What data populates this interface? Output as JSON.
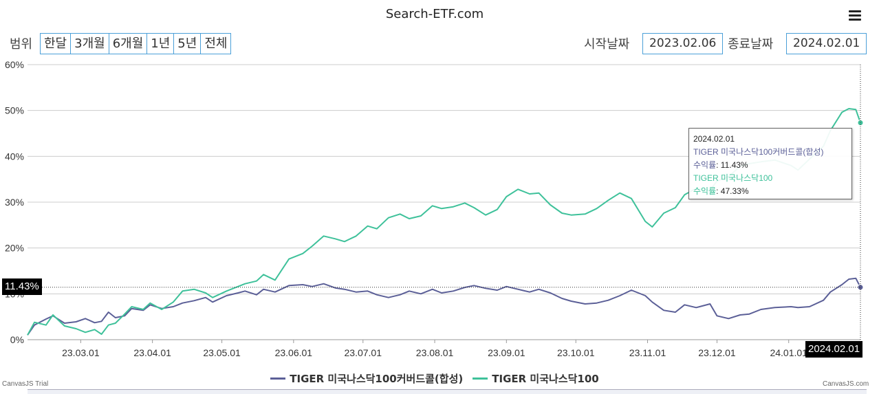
{
  "header": {
    "site_title": "Search-ETF.com",
    "menu_icon": "hamburger-menu-icon"
  },
  "controls": {
    "range_label": "범위",
    "ranges": [
      "한달",
      "3개월",
      "6개월",
      "1년",
      "5년",
      "전체"
    ],
    "start_label": "시작날짜",
    "start_value": "2023.02.06",
    "end_label": "종료날짜",
    "end_value": "2024.02.01"
  },
  "tooltip": {
    "date": "2024.02.01",
    "series1_name": "TIGER 미국나스닥100커버드콜(합성)",
    "series1_label": "수익률",
    "series1_value": ": 11.43%",
    "series2_name": "TIGER 미국나스닥100",
    "series2_label": "수익률",
    "series2_value": ": 47.33%"
  },
  "crosshair": {
    "y_label": "11.43%",
    "x_label": "2024.02.01"
  },
  "credits": {
    "left": "CanvasJS Trial",
    "right": "CanvasJS.com"
  },
  "colors": {
    "series1": "#5b5f97",
    "series2": "#3ec19a",
    "grid": "#cccccc",
    "accent": "#4a9fd8"
  },
  "chart_data": {
    "type": "line",
    "x_ticks": [
      "23.03.01",
      "23.04.01",
      "23.05.01",
      "23.06.01",
      "23.07.01",
      "23.08.01",
      "23.09.01",
      "23.10.01",
      "23.11.01",
      "23.12.01",
      "24.01.01"
    ],
    "y_ticks": [
      "0%",
      "10%",
      "20%",
      "30%",
      "40%",
      "50%",
      "60%"
    ],
    "ylim": [
      0,
      60
    ],
    "grid": true,
    "legend_position": "bottom",
    "series": [
      {
        "name": "TIGER 미국나스닥100커버드콜(합성)",
        "color": "#5b5f97",
        "points": [
          [
            "2023-02-06",
            1.0
          ],
          [
            "2023-02-09",
            3.2
          ],
          [
            "2023-02-14",
            4.5
          ],
          [
            "2023-02-17",
            5.2
          ],
          [
            "2023-02-22",
            3.6
          ],
          [
            "2023-02-27",
            3.9
          ],
          [
            "2023-03-03",
            4.6
          ],
          [
            "2023-03-07",
            3.7
          ],
          [
            "2023-03-10",
            4.0
          ],
          [
            "2023-03-13",
            6.0
          ],
          [
            "2023-03-16",
            4.8
          ],
          [
            "2023-03-20",
            5.2
          ],
          [
            "2023-03-23",
            6.8
          ],
          [
            "2023-03-28",
            6.4
          ],
          [
            "2023-03-31",
            7.6
          ],
          [
            "2023-04-05",
            6.8
          ],
          [
            "2023-04-10",
            7.2
          ],
          [
            "2023-04-14",
            8.0
          ],
          [
            "2023-04-19",
            8.5
          ],
          [
            "2023-04-24",
            9.2
          ],
          [
            "2023-04-27",
            8.2
          ],
          [
            "2023-05-03",
            9.6
          ],
          [
            "2023-05-08",
            10.2
          ],
          [
            "2023-05-11",
            10.6
          ],
          [
            "2023-05-16",
            9.8
          ],
          [
            "2023-05-19",
            11.0
          ],
          [
            "2023-05-24",
            10.4
          ],
          [
            "2023-05-30",
            11.8
          ],
          [
            "2023-06-05",
            12.0
          ],
          [
            "2023-06-09",
            11.6
          ],
          [
            "2023-06-14",
            12.2
          ],
          [
            "2023-06-19",
            11.3
          ],
          [
            "2023-06-23",
            11.0
          ],
          [
            "2023-06-28",
            10.4
          ],
          [
            "2023-07-03",
            10.6
          ],
          [
            "2023-07-07",
            9.8
          ],
          [
            "2023-07-12",
            9.2
          ],
          [
            "2023-07-17",
            9.8
          ],
          [
            "2023-07-21",
            10.6
          ],
          [
            "2023-07-26",
            10.0
          ],
          [
            "2023-07-31",
            11.0
          ],
          [
            "2023-08-04",
            10.2
          ],
          [
            "2023-08-09",
            10.6
          ],
          [
            "2023-08-14",
            11.4
          ],
          [
            "2023-08-18",
            11.8
          ],
          [
            "2023-08-23",
            11.2
          ],
          [
            "2023-08-28",
            10.8
          ],
          [
            "2023-09-01",
            11.6
          ],
          [
            "2023-09-06",
            11.0
          ],
          [
            "2023-09-11",
            10.4
          ],
          [
            "2023-09-15",
            11.0
          ],
          [
            "2023-09-20",
            10.2
          ],
          [
            "2023-09-25",
            9.0
          ],
          [
            "2023-09-29",
            8.4
          ],
          [
            "2023-10-05",
            7.8
          ],
          [
            "2023-10-10",
            8.0
          ],
          [
            "2023-10-15",
            8.6
          ],
          [
            "2023-10-20",
            9.6
          ],
          [
            "2023-10-25",
            10.8
          ],
          [
            "2023-10-31",
            9.6
          ],
          [
            "2023-11-03",
            8.2
          ],
          [
            "2023-11-08",
            6.4
          ],
          [
            "2023-11-13",
            6.0
          ],
          [
            "2023-11-17",
            7.6
          ],
          [
            "2023-11-22",
            7.0
          ],
          [
            "2023-11-28",
            7.8
          ],
          [
            "2023-12-01",
            5.2
          ],
          [
            "2023-12-06",
            4.6
          ],
          [
            "2023-12-11",
            5.4
          ],
          [
            "2023-12-15",
            5.6
          ],
          [
            "2023-12-20",
            6.6
          ],
          [
            "2023-12-26",
            7.0
          ],
          [
            "2024-01-02",
            7.2
          ],
          [
            "2024-01-05",
            7.0
          ],
          [
            "2024-01-10",
            7.2
          ],
          [
            "2024-01-16",
            8.6
          ],
          [
            "2024-01-19",
            10.4
          ],
          [
            "2024-01-24",
            12.0
          ],
          [
            "2024-01-27",
            13.2
          ],
          [
            "2024-01-30",
            13.4
          ],
          [
            "2024-02-01",
            11.43
          ]
        ]
      },
      {
        "name": "TIGER 미국나스닥100",
        "color": "#3ec19a",
        "points": [
          [
            "2023-02-06",
            1.0
          ],
          [
            "2023-02-09",
            3.8
          ],
          [
            "2023-02-14",
            3.2
          ],
          [
            "2023-02-17",
            5.4
          ],
          [
            "2023-02-22",
            3.0
          ],
          [
            "2023-02-27",
            2.4
          ],
          [
            "2023-03-03",
            1.6
          ],
          [
            "2023-03-07",
            2.2
          ],
          [
            "2023-03-10",
            1.2
          ],
          [
            "2023-03-13",
            3.2
          ],
          [
            "2023-03-16",
            3.6
          ],
          [
            "2023-03-20",
            5.6
          ],
          [
            "2023-03-23",
            7.2
          ],
          [
            "2023-03-28",
            6.6
          ],
          [
            "2023-03-31",
            8.0
          ],
          [
            "2023-04-05",
            6.6
          ],
          [
            "2023-04-10",
            8.2
          ],
          [
            "2023-04-14",
            10.6
          ],
          [
            "2023-04-19",
            11.0
          ],
          [
            "2023-04-24",
            10.2
          ],
          [
            "2023-04-27",
            9.2
          ],
          [
            "2023-05-03",
            10.6
          ],
          [
            "2023-05-08",
            11.6
          ],
          [
            "2023-05-11",
            12.2
          ],
          [
            "2023-05-16",
            12.8
          ],
          [
            "2023-05-19",
            14.2
          ],
          [
            "2023-05-24",
            13.0
          ],
          [
            "2023-05-30",
            17.6
          ],
          [
            "2023-06-05",
            18.8
          ],
          [
            "2023-06-09",
            20.4
          ],
          [
            "2023-06-14",
            22.6
          ],
          [
            "2023-06-19",
            22.0
          ],
          [
            "2023-06-23",
            21.4
          ],
          [
            "2023-06-28",
            22.6
          ],
          [
            "2023-07-03",
            24.8
          ],
          [
            "2023-07-07",
            24.2
          ],
          [
            "2023-07-12",
            26.6
          ],
          [
            "2023-07-17",
            27.4
          ],
          [
            "2023-07-21",
            26.4
          ],
          [
            "2023-07-26",
            27.0
          ],
          [
            "2023-07-31",
            29.2
          ],
          [
            "2023-08-04",
            28.6
          ],
          [
            "2023-08-09",
            29.0
          ],
          [
            "2023-08-14",
            29.8
          ],
          [
            "2023-08-18",
            28.8
          ],
          [
            "2023-08-23",
            27.2
          ],
          [
            "2023-08-28",
            28.4
          ],
          [
            "2023-09-01",
            31.2
          ],
          [
            "2023-09-06",
            32.8
          ],
          [
            "2023-09-11",
            31.8
          ],
          [
            "2023-09-15",
            32.0
          ],
          [
            "2023-09-20",
            29.4
          ],
          [
            "2023-09-25",
            27.6
          ],
          [
            "2023-09-29",
            27.2
          ],
          [
            "2023-10-05",
            27.4
          ],
          [
            "2023-10-10",
            28.6
          ],
          [
            "2023-10-15",
            30.4
          ],
          [
            "2023-10-20",
            32.0
          ],
          [
            "2023-10-25",
            30.8
          ],
          [
            "2023-10-31",
            25.8
          ],
          [
            "2023-11-03",
            24.6
          ],
          [
            "2023-11-08",
            27.6
          ],
          [
            "2023-11-13",
            28.8
          ],
          [
            "2023-11-17",
            31.6
          ],
          [
            "2023-11-22",
            33.0
          ],
          [
            "2023-11-28",
            32.6
          ],
          [
            "2023-12-01",
            34.6
          ],
          [
            "2023-12-06",
            35.6
          ],
          [
            "2023-12-11",
            37.8
          ],
          [
            "2023-12-15",
            38.4
          ],
          [
            "2023-12-20",
            38.8
          ],
          [
            "2023-12-26",
            39.2
          ],
          [
            "2024-01-02",
            38.0
          ],
          [
            "2024-01-05",
            37.0
          ],
          [
            "2024-01-10",
            39.4
          ],
          [
            "2024-01-16",
            42.2
          ],
          [
            "2024-01-19",
            45.6
          ],
          [
            "2024-01-24",
            49.6
          ],
          [
            "2024-01-27",
            50.4
          ],
          [
            "2024-01-30",
            50.2
          ],
          [
            "2024-02-01",
            47.33
          ]
        ]
      }
    ]
  }
}
